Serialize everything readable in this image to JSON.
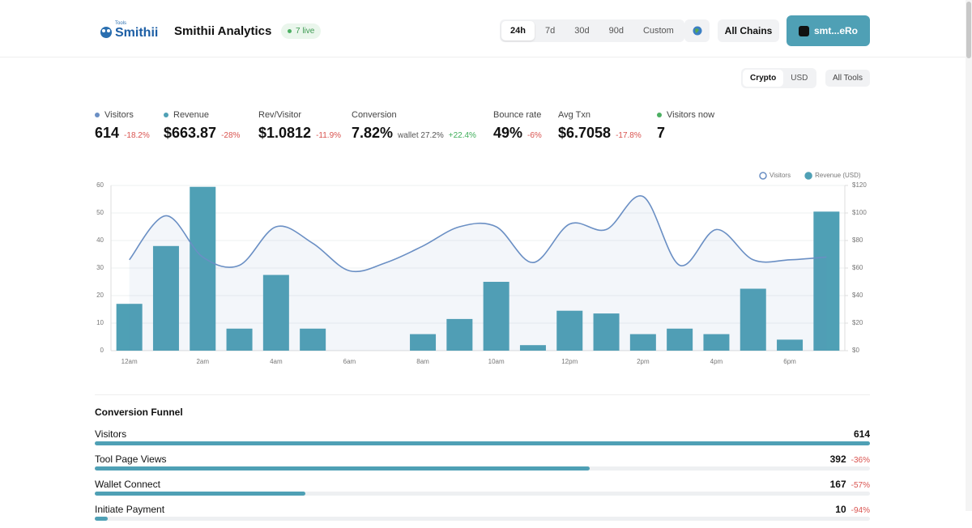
{
  "header": {
    "logo_tag": "Tools",
    "logo": "Smithii",
    "title": "Smithii Analytics",
    "live": "7 live",
    "ranges": [
      "24h",
      "7d",
      "30d",
      "90d",
      "Custom"
    ],
    "chains": "All Chains",
    "wallet": "smt...eRo"
  },
  "toolbar": {
    "currency": [
      "Crypto",
      "USD"
    ],
    "tools": "All Tools"
  },
  "metrics": [
    {
      "label": "Visitors",
      "value": "614",
      "change": "-18.2%",
      "dot": "#6a8fc4"
    },
    {
      "label": "Revenue",
      "value": "$663.87",
      "change": "-28%",
      "dot": "#4fa0b5"
    },
    {
      "label": "Rev/Visitor",
      "value": "$1.0812",
      "change": "-11.9%"
    },
    {
      "label": "Conversion",
      "value": "7.82%",
      "note": "wallet 27.2%",
      "change": "+22.4%"
    },
    {
      "label": "Bounce rate",
      "value": "49%",
      "change": "-6%"
    },
    {
      "label": "Avg Txn",
      "value": "$6.7058",
      "change": "-17.8%"
    },
    {
      "label": "Visitors now",
      "value": "7",
      "dot": "#4caf62"
    }
  ],
  "chart_data": {
    "type": "combo",
    "categories": [
      "12am",
      null,
      "2am",
      null,
      "4am",
      null,
      "6am",
      null,
      "8am",
      null,
      "10am",
      null,
      "12pm",
      null,
      "2pm",
      null,
      "4pm",
      null,
      "6pm",
      null
    ],
    "series": [
      {
        "name": "Visitors",
        "type": "line",
        "color": "#6a8fc4",
        "axis": "y",
        "values": [
          33,
          49,
          34,
          31,
          45,
          39,
          29,
          32,
          38,
          45,
          45,
          32,
          46,
          44,
          56,
          31,
          44,
          33,
          33,
          34
        ]
      },
      {
        "name": "Revenue (USD)",
        "type": "bar",
        "color": "#4fa0b5",
        "axis": "y2",
        "values": [
          34,
          76,
          119,
          16,
          55,
          16,
          0,
          0,
          12,
          23,
          50,
          4,
          29,
          27,
          12,
          16,
          12,
          45,
          8,
          101
        ]
      }
    ],
    "ylim": [
      0,
      60
    ],
    "yticks": [
      0,
      10,
      20,
      30,
      40,
      50,
      60
    ],
    "y2lim": [
      0,
      120
    ],
    "y2ticks": [
      {
        "value": 0,
        "label": "$0"
      },
      {
        "value": 20,
        "label": "$20"
      },
      {
        "value": 40,
        "label": "$40"
      },
      {
        "value": 60,
        "label": "$60"
      },
      {
        "value": 80,
        "label": "$80"
      },
      {
        "value": 100,
        "label": "$100"
      },
      {
        "value": 120,
        "label": "$120"
      }
    ],
    "grid": true,
    "legend": "top-right"
  },
  "funnel": {
    "title": "Conversion Funnel",
    "steps": [
      {
        "label": "Visitors",
        "value": 614
      },
      {
        "label": "Tool Page Views",
        "value": 392,
        "change": "-36%"
      },
      {
        "label": "Wallet Connect",
        "value": 167,
        "change": "-57%"
      },
      {
        "label": "Initiate Payment",
        "value": 10,
        "change": "-94%"
      }
    ]
  }
}
